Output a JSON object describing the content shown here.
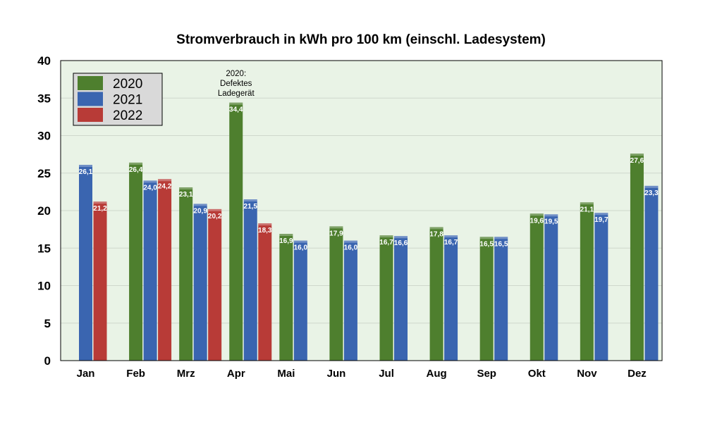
{
  "chart_data": {
    "type": "bar",
    "title": "Stromverbrauch in kWh pro 100 km (einschl. Ladesystem)",
    "xlabel": "",
    "ylabel": "",
    "ylim": [
      0,
      40
    ],
    "yticks": [
      "0",
      "5",
      "10",
      "15",
      "20",
      "25",
      "30",
      "35",
      "40"
    ],
    "grid": true,
    "legend_position": "top-left",
    "categories": [
      "Jan",
      "Feb",
      "Mrz",
      "Apr",
      "Mai",
      "Jun",
      "Jul",
      "Aug",
      "Sep",
      "Okt",
      "Nov",
      "Dez"
    ],
    "series": [
      {
        "name": "2020",
        "color": "#4e7f2e",
        "values": [
          null,
          26.4,
          23.1,
          34.4,
          16.9,
          17.9,
          16.7,
          17.8,
          16.5,
          19.6,
          21.1,
          27.6
        ],
        "labels": [
          null,
          "26,4",
          "23,1",
          "34,4",
          "16,9",
          "17,9",
          "16,7",
          "17,8",
          "16,5",
          "19,6",
          "21,1",
          "27,6"
        ]
      },
      {
        "name": "2021",
        "color": "#3a65b0",
        "values": [
          26.1,
          24.0,
          20.9,
          21.5,
          16.0,
          16.0,
          16.6,
          16.7,
          16.5,
          19.5,
          19.7,
          23.3
        ],
        "labels": [
          "26,1",
          "24,0",
          "20,9",
          "21,5",
          "16,0",
          "16,0",
          "16,6",
          "16,7",
          "16,5",
          "19,5",
          "19,7",
          "23,3"
        ]
      },
      {
        "name": "2022",
        "color": "#b83b37",
        "values": [
          21.2,
          24.2,
          20.2,
          18.3,
          null,
          null,
          null,
          null,
          null,
          null,
          null,
          null
        ],
        "labels": [
          "21,2",
          "24,2",
          "20,2",
          "18,3",
          null,
          null,
          null,
          null,
          null,
          null,
          null,
          null
        ]
      }
    ],
    "annotations": [
      {
        "category": "Apr",
        "lines": [
          "2020:",
          "Defektes",
          "Ladegerät"
        ]
      }
    ],
    "plot_background": "#e9f3e6",
    "grid_color": "#cfd8cc"
  }
}
